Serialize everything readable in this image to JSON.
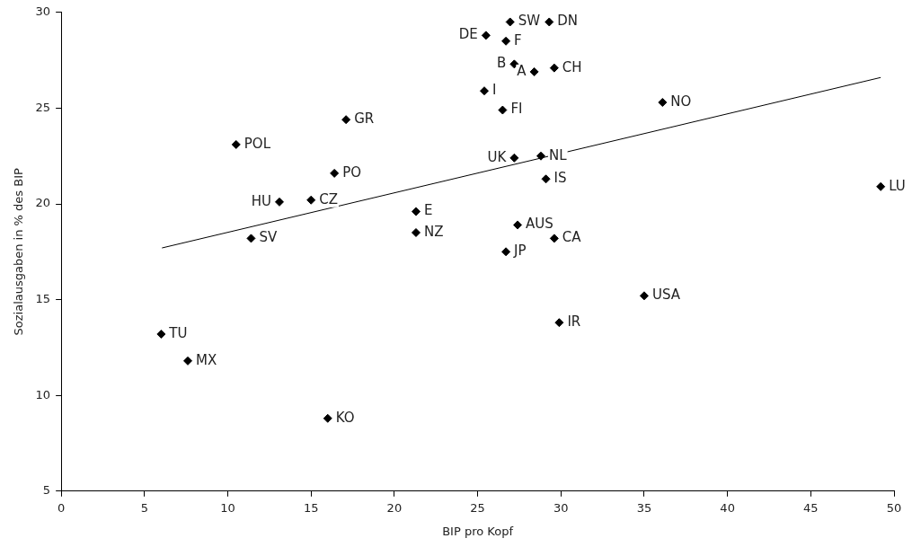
{
  "chart_data": {
    "type": "scatter",
    "xlabel": "BIP pro Kopf",
    "ylabel": "Sozialausgaben in % des BIP",
    "xlim": [
      0,
      50
    ],
    "xticks": [
      0,
      5,
      10,
      15,
      20,
      25,
      30,
      35,
      40,
      45,
      50
    ],
    "ylim": [
      5,
      30
    ],
    "yticks": [
      5,
      10,
      15,
      20,
      25,
      30
    ],
    "grid": false,
    "legend": false,
    "marker": "diamond",
    "series": [
      {
        "type": "scatter",
        "color": "#000000",
        "x": [
          26.95,
          29.3,
          25.5,
          26.7,
          27.2,
          28.4,
          29.6,
          25.4,
          26.5,
          36.1,
          17.1,
          10.5,
          27.2,
          28.8,
          29.1,
          16.4,
          49.2,
          13.1,
          15.0,
          21.3,
          21.3,
          27.4,
          29.6,
          11.4,
          26.7,
          35.0,
          29.9,
          6.0,
          7.6,
          16.0
        ],
        "values": [
          29.5,
          29.5,
          28.8,
          28.5,
          27.3,
          26.9,
          27.1,
          25.9,
          24.9,
          25.3,
          24.4,
          23.1,
          22.4,
          22.5,
          21.3,
          21.6,
          20.9,
          20.1,
          20.2,
          19.6,
          18.5,
          18.9,
          18.2,
          18.2,
          17.5,
          15.2,
          13.8,
          13.2,
          11.8,
          8.8
        ]
      },
      {
        "type": "line",
        "color": "#000000",
        "marker": "none",
        "x": [
          6.05,
          49.2
        ],
        "values": [
          17.7,
          26.6
        ]
      }
    ],
    "annotations": [
      {
        "text": "SW",
        "x": 26.95,
        "y": 29.5
      },
      {
        "text": "DN",
        "x": 29.3,
        "y": 29.5
      },
      {
        "text": "DE",
        "x": 25.5,
        "y": 28.8
      },
      {
        "text": "F",
        "x": 26.7,
        "y": 28.5
      },
      {
        "text": "B",
        "x": 27.2,
        "y": 27.3
      },
      {
        "text": "A",
        "x": 28.4,
        "y": 26.9
      },
      {
        "text": "CH",
        "x": 29.6,
        "y": 27.1
      },
      {
        "text": "I",
        "x": 25.4,
        "y": 25.9
      },
      {
        "text": "FI",
        "x": 26.5,
        "y": 24.9
      },
      {
        "text": "NO",
        "x": 36.1,
        "y": 25.3
      },
      {
        "text": "GR",
        "x": 17.1,
        "y": 24.4
      },
      {
        "text": "POL",
        "x": 10.5,
        "y": 23.1
      },
      {
        "text": "UK",
        "x": 27.2,
        "y": 22.4
      },
      {
        "text": "NL",
        "x": 28.8,
        "y": 22.5
      },
      {
        "text": "IS",
        "x": 29.1,
        "y": 21.3
      },
      {
        "text": "PO",
        "x": 16.4,
        "y": 21.6
      },
      {
        "text": "LU",
        "x": 49.2,
        "y": 20.9
      },
      {
        "text": "HU",
        "x": 13.1,
        "y": 20.1
      },
      {
        "text": "CZ",
        "x": 15.0,
        "y": 20.2
      },
      {
        "text": "E",
        "x": 21.3,
        "y": 19.6
      },
      {
        "text": "NZ",
        "x": 21.3,
        "y": 18.5
      },
      {
        "text": "AUS",
        "x": 27.4,
        "y": 18.9
      },
      {
        "text": "CA",
        "x": 29.6,
        "y": 18.2
      },
      {
        "text": "SV",
        "x": 11.4,
        "y": 18.2
      },
      {
        "text": "JP",
        "x": 26.7,
        "y": 17.5
      },
      {
        "text": "USA",
        "x": 35.0,
        "y": 15.2
      },
      {
        "text": "IR",
        "x": 29.9,
        "y": 13.8
      },
      {
        "text": "TU",
        "x": 6.0,
        "y": 13.2
      },
      {
        "text": "MX",
        "x": 7.6,
        "y": 11.8
      },
      {
        "text": "KO",
        "x": 16.0,
        "y": 8.8
      }
    ]
  }
}
